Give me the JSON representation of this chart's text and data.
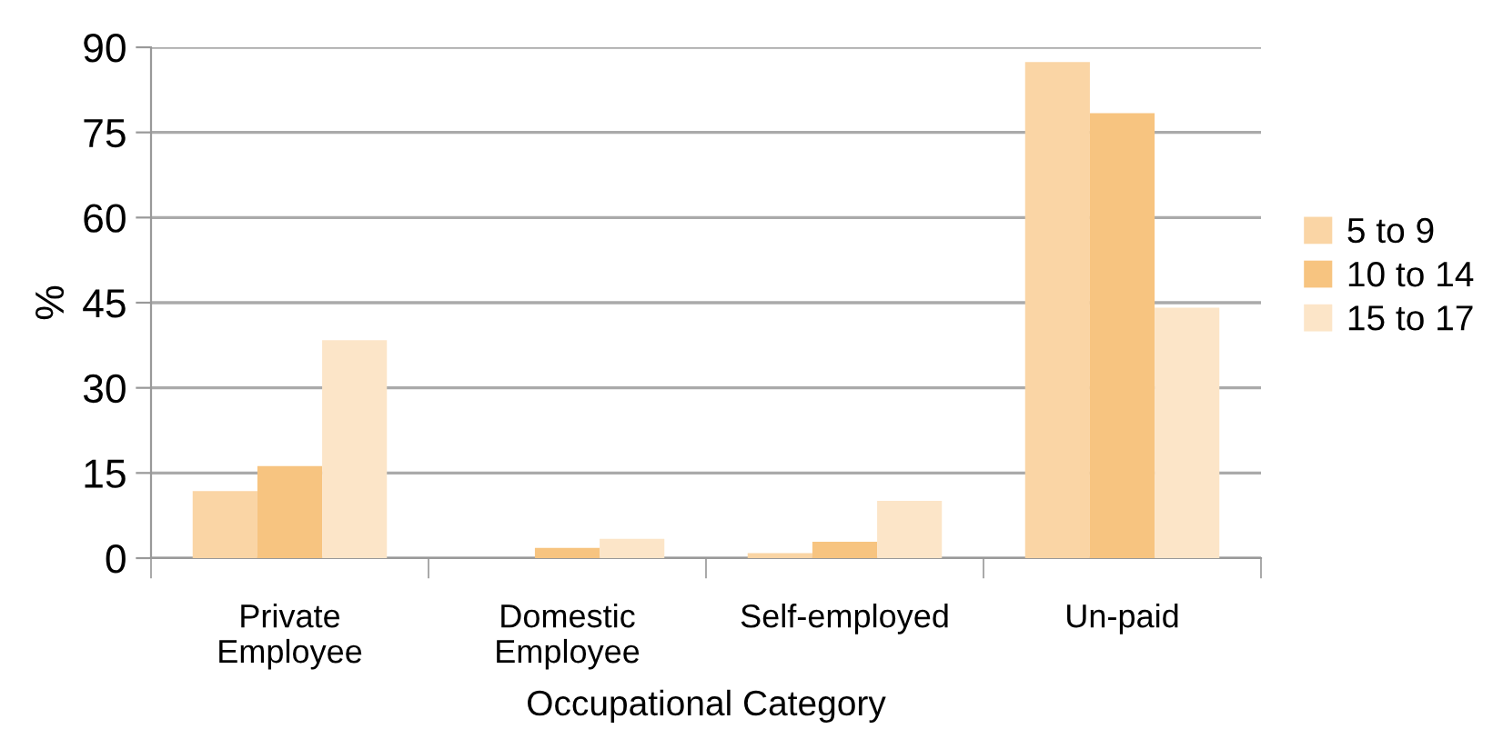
{
  "chart_data": {
    "type": "bar",
    "xlabel": "Occupational Category",
    "ylabel": "%",
    "categories": [
      "Private\nEmployee",
      "Domestic\nEmployee",
      "Self-employed",
      "Un-paid"
    ],
    "series": [
      {
        "name": "5 to 9",
        "color": "#fad5a5",
        "values": [
          11.8,
          0,
          0.9,
          87.4
        ]
      },
      {
        "name": "10 to 14",
        "color": "#f7c480",
        "values": [
          16.2,
          1.8,
          2.9,
          78.4
        ]
      },
      {
        "name": "15 to 17",
        "color": "#fce5c8",
        "values": [
          38.4,
          3.4,
          10.1,
          44.1
        ]
      }
    ],
    "ylim": [
      0,
      90
    ],
    "yticks": [
      0,
      15,
      30,
      45,
      60,
      75,
      90
    ],
    "grid": "y",
    "legend": "right"
  }
}
